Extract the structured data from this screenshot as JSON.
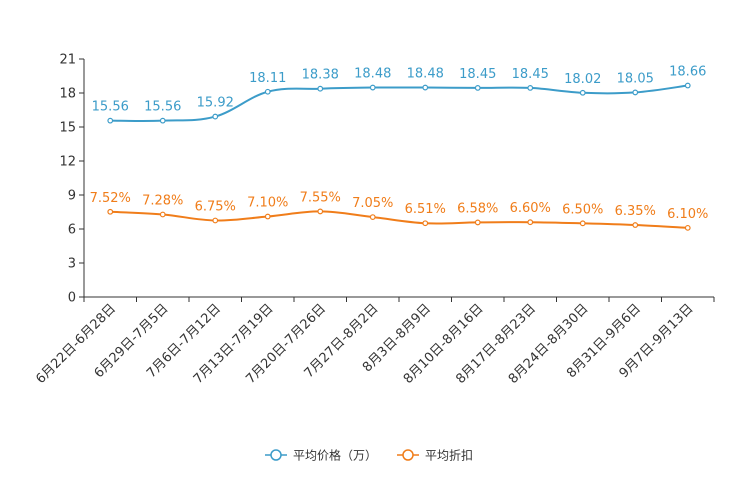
{
  "chart_data": {
    "type": "line",
    "categories": [
      "6月22日-6月28日",
      "6月29日-7月5日",
      "7月6日-7月12日",
      "7月13日-7月19日",
      "7月20日-7月26日",
      "7月27日-8月2日",
      "8月3日-8月9日",
      "8月10日-8月16日",
      "8月17日-8月23日",
      "8月24日-8月30日",
      "8月31日-9月6日",
      "9月7日-9月13日"
    ],
    "y_ticks": [
      "0",
      "3",
      "6",
      "9",
      "12",
      "15",
      "18",
      "21"
    ],
    "ylim": [
      0,
      21
    ],
    "series": [
      {
        "name": "平均价格（万）",
        "color": "#3c9cc9",
        "values": [
          15.56,
          15.56,
          15.92,
          18.11,
          18.38,
          18.48,
          18.48,
          18.45,
          18.45,
          18.02,
          18.05,
          18.66
        ],
        "labels": [
          "15.56",
          "15.56",
          "15.92",
          "18.11",
          "18.38",
          "18.48",
          "18.48",
          "18.45",
          "18.45",
          "18.02",
          "18.05",
          "18.66"
        ]
      },
      {
        "name": "平均折扣",
        "color": "#f07d1a",
        "values": [
          7.52,
          7.28,
          6.75,
          7.1,
          7.55,
          7.05,
          6.51,
          6.58,
          6.6,
          6.5,
          6.35,
          6.1
        ],
        "labels": [
          "7.52%",
          "7.28%",
          "6.75%",
          "7.10%",
          "7.55%",
          "7.05%",
          "6.51%",
          "6.58%",
          "6.60%",
          "6.50%",
          "6.35%",
          "6.10%"
        ]
      }
    ],
    "legend_position": "bottom-center"
  }
}
